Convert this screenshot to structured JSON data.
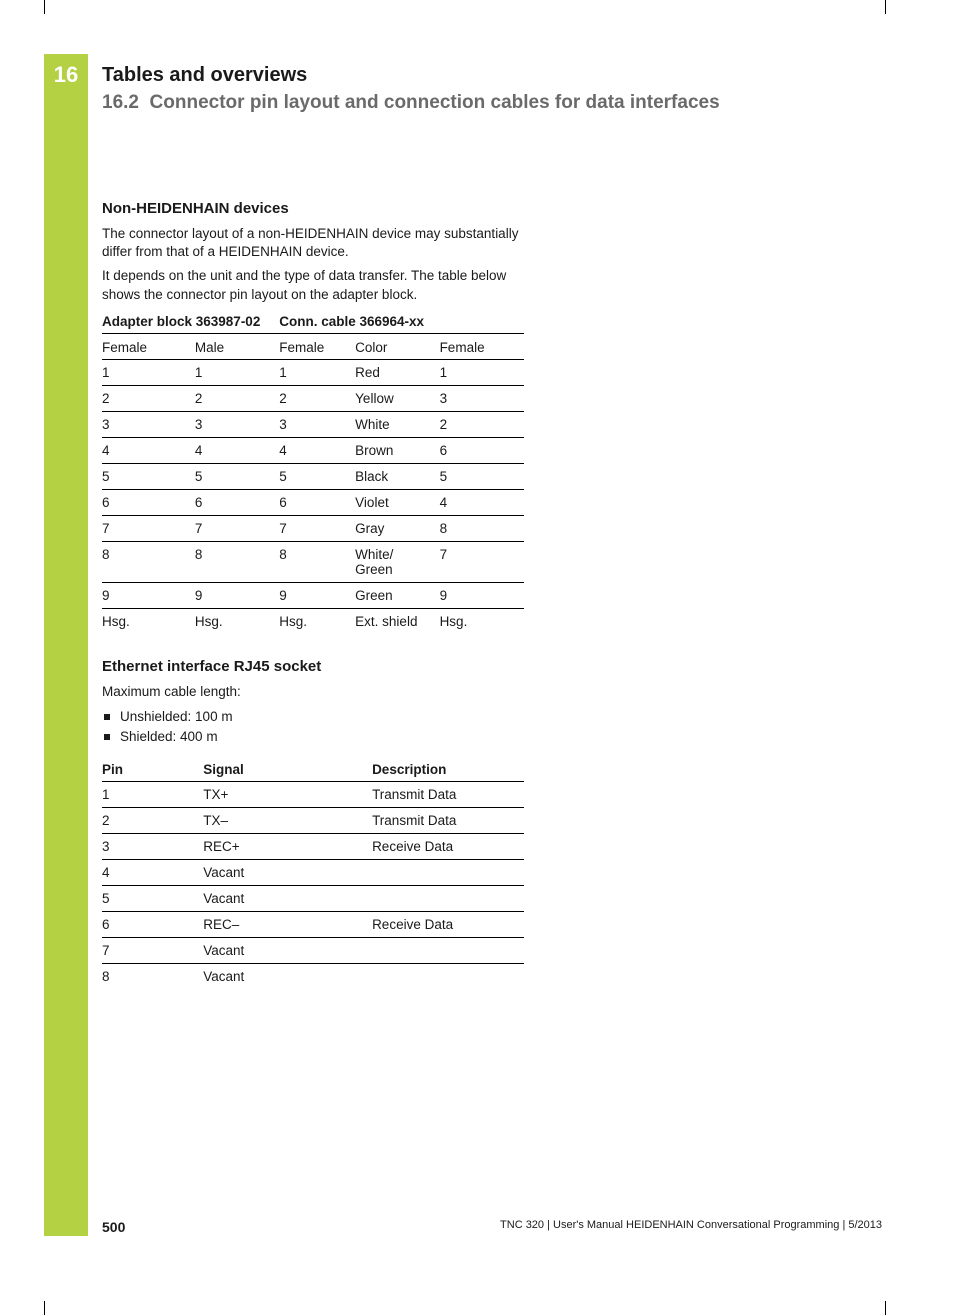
{
  "colors": {
    "accent_green": "#b3d143",
    "text": "#1a1a1a",
    "section_gray": "#6a6a6a",
    "background": "#ffffff",
    "rule": "#000000"
  },
  "typography": {
    "body_fontsize_pt": 10,
    "h3_fontsize_pt": 11,
    "chapter_num_fontsize_pt": 16,
    "chapter_title_fontsize_pt": 15,
    "section_title_fontsize_pt": 14
  },
  "chapter": {
    "number": "16",
    "title": "Tables and overviews",
    "section_number": "16.2",
    "section_title": "Connector pin layout and connection cables for data interfaces"
  },
  "section1": {
    "heading": "Non-HEIDENHAIN devices",
    "para1": "The connector layout of a non-HEIDENHAIN device may substantially differ from that of a HEIDENHAIN device.",
    "para2": "It depends on the unit and the type of data transfer. The table below shows the connector pin layout on the adapter block."
  },
  "table1": {
    "type": "table",
    "header_group1": "Adapter block 363987-02",
    "header_group2": "Conn. cable 366964-xx",
    "columns": [
      "Female",
      "Male",
      "Female",
      "Color",
      "Female"
    ],
    "col_widths_pct": [
      22,
      20,
      18,
      20,
      20
    ],
    "rows": [
      [
        "1",
        "1",
        "1",
        "Red",
        "1"
      ],
      [
        "2",
        "2",
        "2",
        "Yellow",
        "3"
      ],
      [
        "3",
        "3",
        "3",
        "White",
        "2"
      ],
      [
        "4",
        "4",
        "4",
        "Brown",
        "6"
      ],
      [
        "5",
        "5",
        "5",
        "Black",
        "5"
      ],
      [
        "6",
        "6",
        "6",
        "Violet",
        "4"
      ],
      [
        "7",
        "7",
        "7",
        "Gray",
        "8"
      ],
      [
        "8",
        "8",
        "8",
        "White/\nGreen",
        "7"
      ],
      [
        "9",
        "9",
        "9",
        "Green",
        "9"
      ],
      [
        "Hsg.",
        "Hsg.",
        "Hsg.",
        "Ext. shield",
        "Hsg."
      ]
    ]
  },
  "section2": {
    "heading": "Ethernet interface RJ45 socket",
    "intro": "Maximum cable length:",
    "bullets": [
      "Unshielded: 100 m",
      "Shielded: 400 m"
    ]
  },
  "table2": {
    "type": "table",
    "columns": [
      "Pin",
      "Signal",
      "Description"
    ],
    "col_widths_pct": [
      24,
      40,
      36
    ],
    "rows": [
      [
        "1",
        "TX+",
        "Transmit Data"
      ],
      [
        "2",
        "TX–",
        "Transmit Data"
      ],
      [
        "3",
        "REC+",
        "Receive Data"
      ],
      [
        "4",
        "Vacant",
        ""
      ],
      [
        "5",
        "Vacant",
        ""
      ],
      [
        "6",
        "REC–",
        "Receive Data"
      ],
      [
        "7",
        "Vacant",
        ""
      ],
      [
        "8",
        "Vacant",
        ""
      ]
    ]
  },
  "footer": {
    "page_number": "500",
    "text": "TNC 320 | User's Manual HEIDENHAIN Conversational Programming | 5/2013"
  }
}
